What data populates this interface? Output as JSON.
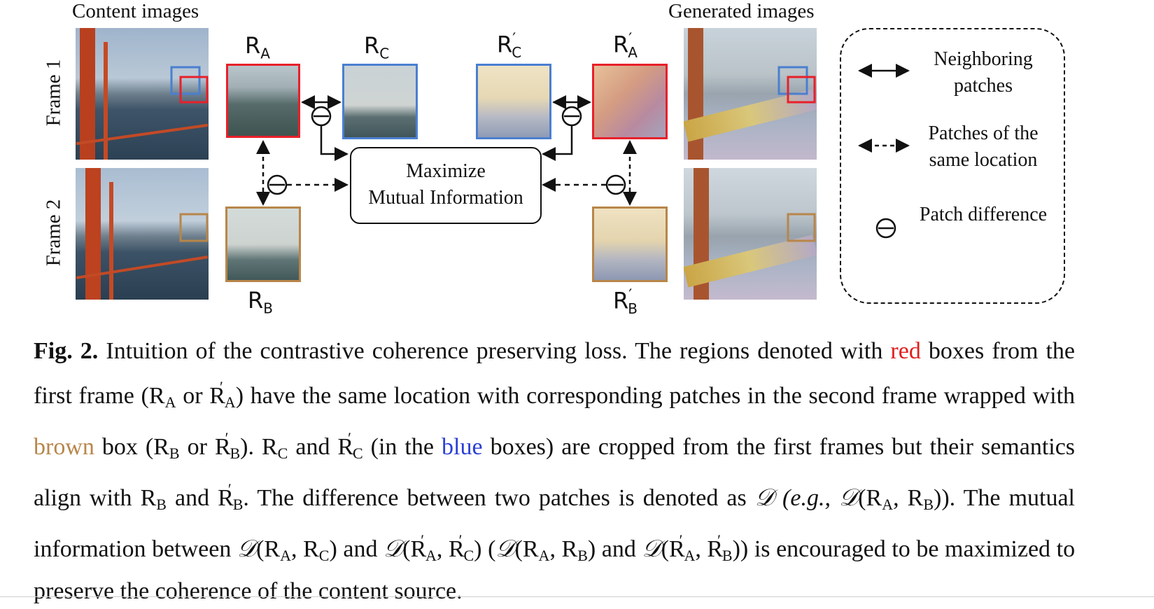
{
  "figure": {
    "headers": {
      "content": "Content images",
      "generated": "Generated images"
    },
    "frames": {
      "frame1": "Frame 1",
      "frame2": "Frame 2"
    },
    "patch_labels": {
      "ra": {
        "base": "R",
        "sub": "A",
        "prime": ""
      },
      "rc": {
        "base": "R",
        "sub": "C",
        "prime": ""
      },
      "rcp": {
        "base": "R",
        "sub": "C",
        "prime": "′"
      },
      "rap": {
        "base": "R",
        "sub": "A",
        "prime": "′"
      },
      "rb": {
        "base": "R",
        "sub": "B",
        "prime": ""
      },
      "rbp": {
        "base": "R",
        "sub": "B",
        "prime": "′"
      }
    },
    "center_box": {
      "line1": "Maximize",
      "line2": "Mutual Information"
    },
    "difference_symbol": "⊖",
    "legend": {
      "neighboring": "Neighboring patches",
      "same_location": "Patches of the same location",
      "patch_difference": "Patch difference"
    },
    "colors": {
      "red": "#e8202a",
      "blue": "#4a7fd0",
      "brown": "#b8864a"
    }
  },
  "caption": {
    "fig_label": "Fig. 2.",
    "s1": "Intuition of the contrastive coherence preserving loss. The regions denoted with",
    "red_word": "red",
    "s2": "boxes from the first frame (R",
    "s3": "or R",
    "s4": ") have the same location with corresponding patches in the second frame wrapped with",
    "brown_word": "brown",
    "s5": "box (R",
    "s6": "or R",
    "s7": "). R",
    "s8": "and R",
    "s9": "(in the",
    "blue_word": "blue",
    "s10": "boxes) are cropped from the first frames but their semantics align with R",
    "s11": "and R",
    "s12": ". The difference between two patches is denoted as",
    "s13": "(e.g.,",
    "s14": "). The mutual information between",
    "s15": "and",
    "s16": "(",
    "s17": "and",
    "s18": ") is encouraged to be maximized to preserve the coherence of the content source.",
    "sym_D": "𝒟",
    "sub_A": "A",
    "sub_B": "B",
    "sub_C": "C",
    "prime": "′",
    "letter_R": "R",
    "comma": ",",
    "paren_open": "(",
    "paren_close": ")"
  }
}
